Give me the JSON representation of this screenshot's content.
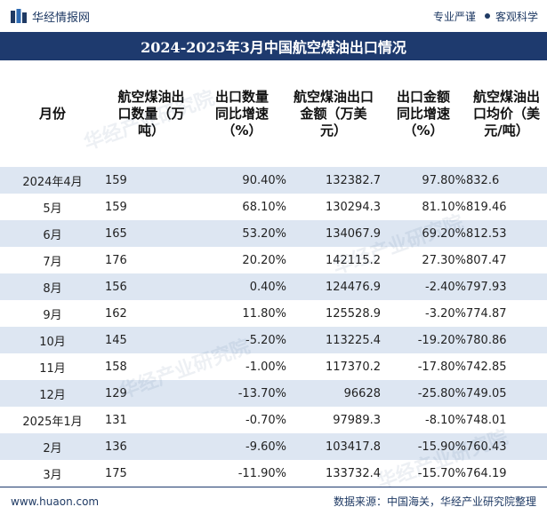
{
  "header": {
    "brand": "华经情报网",
    "slogan_left": "专业严谨",
    "slogan_right": "客观科学"
  },
  "title": "2024-2025年3月中国航空煤油出口情况",
  "table": {
    "columns": [
      "月份",
      "航空煤油出口数量（万吨）",
      "出口数量同比增速（%）",
      "航空煤油出口金额（万美元）",
      "出口金额同比增速（%）",
      "航空煤油出口均价（美元/吨）"
    ],
    "rows": [
      [
        "2024年4月",
        "159",
        "90.40%",
        "132382.7",
        "97.80%",
        "832.6"
      ],
      [
        "5月",
        "159",
        "68.10%",
        "130294.3",
        "81.10%",
        "819.46"
      ],
      [
        "6月",
        "165",
        "53.20%",
        "134067.9",
        "69.20%",
        "812.53"
      ],
      [
        "7月",
        "176",
        "20.20%",
        "142115.2",
        "27.30%",
        "807.47"
      ],
      [
        "8月",
        "156",
        "0.40%",
        "124476.9",
        "-2.40%",
        "797.93"
      ],
      [
        "9月",
        "162",
        "11.80%",
        "125528.9",
        "-3.20%",
        "774.87"
      ],
      [
        "10月",
        "145",
        "-5.20%",
        "113225.4",
        "-19.20%",
        "780.86"
      ],
      [
        "11月",
        "158",
        "-1.00%",
        "117370.2",
        "-17.80%",
        "742.85"
      ],
      [
        "12月",
        "129",
        "-13.70%",
        "96628",
        "-25.80%",
        "749.05"
      ],
      [
        "2025年1月",
        "131",
        "-0.70%",
        "97989.3",
        "-8.10%",
        "748.01"
      ],
      [
        "2月",
        "136",
        "-9.60%",
        "103417.8",
        "-15.90%",
        "760.43"
      ],
      [
        "3月",
        "175",
        "-11.90%",
        "133732.4",
        "-15.70%",
        "764.19"
      ]
    ]
  },
  "watermark": "华经产业研究院",
  "footer": {
    "website": "www.huaon.com",
    "source": "数据来源：中国海关，华经产业研究院整理"
  },
  "colors": {
    "title_bg": "#1e3a6e",
    "stripe": "#dde6f2",
    "negative": "#4a7fc0"
  }
}
